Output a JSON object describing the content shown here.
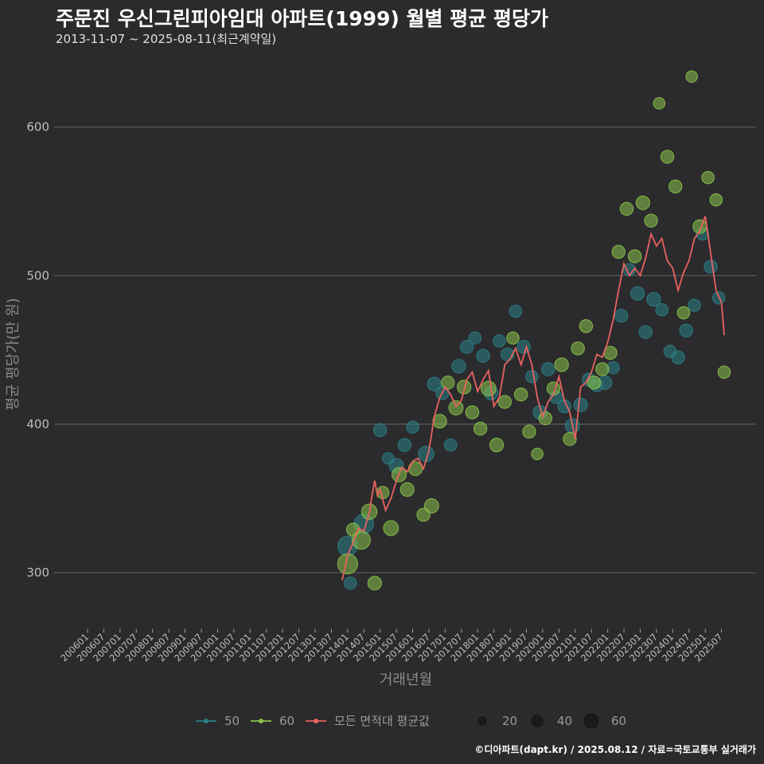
{
  "header": {
    "title": "주문진 우신그린피아임대 아파트(1999) 월별 평균 평당가",
    "subtitle": "2013-11-07 ~ 2025-08-11(최근계약일)"
  },
  "footer": "©디아파트(dapt.kr) / 2025.08.12 / 자료=국토교통부 실거래가",
  "colors": {
    "background": "#2b2b2d",
    "grid": "#5c5c5c",
    "series_50": "#2a7f86",
    "series_60": "#8bc34a",
    "avg_line": "#e8625f",
    "size_legend": "#1a1a1a"
  },
  "chart_data": {
    "type": "scatter",
    "title": "주문진 우신그린피아임대 아파트(1999) 월별 평균 평당가",
    "xlabel": "거래년월",
    "ylabel": "평균 평당가(만 원)",
    "ylim": [
      265,
      640
    ],
    "yticks": [
      300,
      400,
      500,
      600
    ],
    "xlim": [
      "2006-01",
      "2025-08"
    ],
    "x_tick_labels": [
      "200601",
      "200607",
      "200701",
      "200707",
      "200801",
      "200807",
      "200901",
      "200907",
      "201001",
      "201007",
      "201101",
      "201107",
      "201201",
      "201207",
      "201301",
      "201307",
      "201401",
      "201407",
      "201501",
      "201507",
      "201601",
      "201607",
      "201701",
      "201707",
      "201801",
      "201807",
      "201901",
      "201907",
      "202001",
      "202007",
      "202101",
      "202107",
      "202201",
      "202207",
      "202301",
      "202307",
      "202401",
      "202407",
      "202501",
      "202507"
    ],
    "legend_series": [
      "50",
      "60",
      "모든 면적대 평균값"
    ],
    "legend_sizes": [
      20,
      40,
      60
    ],
    "series": [
      {
        "name": "50",
        "points": [
          [
            "2014-01",
            318,
            40
          ],
          [
            "2014-02",
            293,
            12
          ],
          [
            "2014-07",
            333,
            38
          ],
          [
            "2015-01",
            396,
            14
          ],
          [
            "2015-04",
            377,
            10
          ],
          [
            "2015-07",
            372,
            18
          ],
          [
            "2015-10",
            386,
            14
          ],
          [
            "2016-01",
            398,
            12
          ],
          [
            "2016-06",
            380,
            22
          ],
          [
            "2016-09",
            427,
            16
          ],
          [
            "2016-12",
            421,
            14
          ],
          [
            "2017-03",
            386,
            12
          ],
          [
            "2017-06",
            439,
            16
          ],
          [
            "2017-09",
            452,
            14
          ],
          [
            "2017-12",
            458,
            12
          ],
          [
            "2018-03",
            446,
            14
          ],
          [
            "2018-06",
            421,
            16
          ],
          [
            "2018-09",
            456,
            12
          ],
          [
            "2018-12",
            447,
            14
          ],
          [
            "2019-03",
            476,
            12
          ],
          [
            "2019-06",
            452,
            14
          ],
          [
            "2019-09",
            432,
            12
          ],
          [
            "2019-12",
            408,
            16
          ],
          [
            "2020-03",
            437,
            14
          ],
          [
            "2020-06",
            418,
            12
          ],
          [
            "2020-09",
            412,
            14
          ],
          [
            "2020-12",
            399,
            18
          ],
          [
            "2021-03",
            413,
            16
          ],
          [
            "2021-06",
            430,
            14
          ],
          [
            "2021-09",
            426,
            12
          ],
          [
            "2021-12",
            428,
            16
          ],
          [
            "2022-03",
            438,
            12
          ],
          [
            "2022-06",
            473,
            14
          ],
          [
            "2022-09",
            504,
            12
          ],
          [
            "2022-12",
            488,
            16
          ],
          [
            "2023-03",
            462,
            14
          ],
          [
            "2023-06",
            484,
            16
          ],
          [
            "2023-09",
            477,
            12
          ],
          [
            "2023-12",
            449,
            12
          ],
          [
            "2024-03",
            445,
            14
          ],
          [
            "2024-06",
            463,
            14
          ],
          [
            "2024-09",
            480,
            12
          ],
          [
            "2024-12",
            528,
            12
          ],
          [
            "2025-03",
            506,
            14
          ],
          [
            "2025-06",
            485,
            12
          ]
        ]
      },
      {
        "name": "60",
        "points": [
          [
            "2014-01",
            306,
            42
          ],
          [
            "2014-03",
            329,
            14
          ],
          [
            "2014-06",
            322,
            34
          ],
          [
            "2014-09",
            341,
            22
          ],
          [
            "2014-11",
            293,
            16
          ],
          [
            "2015-02",
            354,
            12
          ],
          [
            "2015-05",
            330,
            20
          ],
          [
            "2015-08",
            366,
            18
          ],
          [
            "2015-11",
            356,
            16
          ],
          [
            "2016-02",
            370,
            16
          ],
          [
            "2016-05",
            339,
            14
          ],
          [
            "2016-08",
            345,
            18
          ],
          [
            "2016-11",
            402,
            16
          ],
          [
            "2017-02",
            428,
            14
          ],
          [
            "2017-05",
            411,
            18
          ],
          [
            "2017-08",
            425,
            16
          ],
          [
            "2017-11",
            408,
            14
          ],
          [
            "2018-02",
            397,
            14
          ],
          [
            "2018-05",
            424,
            20
          ],
          [
            "2018-08",
            386,
            16
          ],
          [
            "2018-11",
            415,
            14
          ],
          [
            "2019-02",
            458,
            12
          ],
          [
            "2019-05",
            420,
            14
          ],
          [
            "2019-08",
            395,
            14
          ],
          [
            "2019-11",
            380,
            10
          ],
          [
            "2020-02",
            404,
            14
          ],
          [
            "2020-05",
            424,
            14
          ],
          [
            "2020-08",
            440,
            16
          ],
          [
            "2020-11",
            390,
            14
          ],
          [
            "2021-02",
            451,
            14
          ],
          [
            "2021-05",
            466,
            14
          ],
          [
            "2021-08",
            428,
            14
          ],
          [
            "2021-11",
            437,
            14
          ],
          [
            "2022-02",
            448,
            14
          ],
          [
            "2022-05",
            516,
            14
          ],
          [
            "2022-08",
            545,
            14
          ],
          [
            "2022-11",
            513,
            14
          ],
          [
            "2023-02",
            549,
            16
          ],
          [
            "2023-05",
            537,
            14
          ],
          [
            "2023-08",
            616,
            10
          ],
          [
            "2023-11",
            580,
            14
          ],
          [
            "2024-02",
            560,
            14
          ],
          [
            "2024-05",
            475,
            12
          ],
          [
            "2024-08",
            634,
            10
          ],
          [
            "2024-11",
            533,
            16
          ],
          [
            "2025-02",
            566,
            12
          ],
          [
            "2025-05",
            551,
            12
          ],
          [
            "2025-08",
            435,
            12
          ]
        ]
      },
      {
        "name": "모든 면적대 평균값",
        "points": [
          [
            "2013-11",
            295
          ],
          [
            "2014-01",
            312
          ],
          [
            "2014-03",
            320
          ],
          [
            "2014-05",
            330
          ],
          [
            "2014-07",
            328
          ],
          [
            "2014-09",
            340
          ],
          [
            "2014-10",
            352
          ],
          [
            "2014-11",
            362
          ],
          [
            "2014-12",
            352
          ],
          [
            "2015-01",
            356
          ],
          [
            "2015-03",
            342
          ],
          [
            "2015-05",
            350
          ],
          [
            "2015-07",
            362
          ],
          [
            "2015-09",
            371
          ],
          [
            "2015-11",
            368
          ],
          [
            "2016-01",
            375
          ],
          [
            "2016-03",
            377
          ],
          [
            "2016-05",
            370
          ],
          [
            "2016-07",
            382
          ],
          [
            "2016-09",
            405
          ],
          [
            "2016-11",
            418
          ],
          [
            "2017-01",
            425
          ],
          [
            "2017-03",
            420
          ],
          [
            "2017-05",
            412
          ],
          [
            "2017-07",
            416
          ],
          [
            "2017-09",
            430
          ],
          [
            "2017-11",
            435
          ],
          [
            "2018-01",
            422
          ],
          [
            "2018-03",
            430
          ],
          [
            "2018-05",
            436
          ],
          [
            "2018-07",
            412
          ],
          [
            "2018-09",
            418
          ],
          [
            "2018-11",
            440
          ],
          [
            "2019-01",
            444
          ],
          [
            "2019-03",
            451
          ],
          [
            "2019-05",
            440
          ],
          [
            "2019-07",
            452
          ],
          [
            "2019-09",
            440
          ],
          [
            "2019-11",
            418
          ],
          [
            "2020-01",
            405
          ],
          [
            "2020-03",
            415
          ],
          [
            "2020-05",
            420
          ],
          [
            "2020-07",
            432
          ],
          [
            "2020-09",
            416
          ],
          [
            "2020-11",
            408
          ],
          [
            "2021-01",
            390
          ],
          [
            "2021-03",
            425
          ],
          [
            "2021-05",
            428
          ],
          [
            "2021-07",
            435
          ],
          [
            "2021-09",
            447
          ],
          [
            "2021-11",
            445
          ],
          [
            "2022-01",
            455
          ],
          [
            "2022-03",
            470
          ],
          [
            "2022-05",
            490
          ],
          [
            "2022-07",
            508
          ],
          [
            "2022-09",
            500
          ],
          [
            "2022-11",
            505
          ],
          [
            "2023-01",
            500
          ],
          [
            "2023-03",
            512
          ],
          [
            "2023-05",
            528
          ],
          [
            "2023-07",
            520
          ],
          [
            "2023-09",
            525
          ],
          [
            "2023-11",
            510
          ],
          [
            "2024-01",
            505
          ],
          [
            "2024-03",
            490
          ],
          [
            "2024-05",
            502
          ],
          [
            "2024-07",
            510
          ],
          [
            "2024-09",
            525
          ],
          [
            "2024-11",
            530
          ],
          [
            "2025-01",
            540
          ],
          [
            "2025-03",
            515
          ],
          [
            "2025-05",
            490
          ],
          [
            "2025-07",
            482
          ],
          [
            "2025-08",
            460
          ]
        ]
      }
    ]
  }
}
